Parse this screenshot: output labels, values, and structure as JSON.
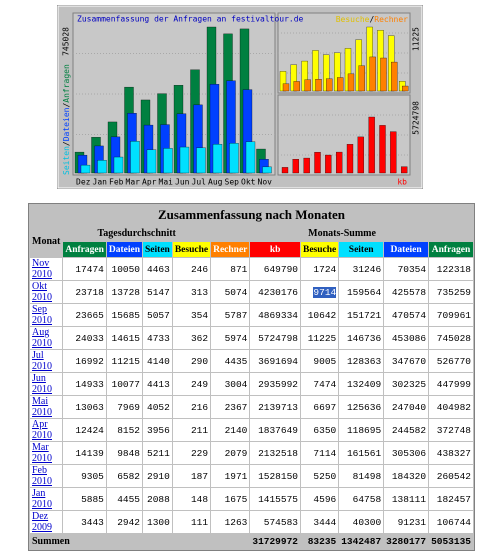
{
  "graph": {
    "title": "Zusammenfassung der Anfragen an festivaltour.de",
    "side_label": [
      "Seiten",
      "Dateien",
      "Anfragen"
    ],
    "legend": [
      "Besuche",
      "Rechner"
    ],
    "separator": "/",
    "scale_labels": {
      "main": 745028,
      "visits": 11225,
      "kb": 5724798
    },
    "kb_label": "kb",
    "months": [
      "Dez",
      "Jan",
      "Feb",
      "Mar",
      "Apr",
      "Mai",
      "Jun",
      "Jul",
      "Aug",
      "Sep",
      "Okt",
      "Nov"
    ]
  },
  "table": {
    "title": "Zusammenfassung nach Monaten",
    "col_month": "Monat",
    "group_daily": "Tagesdurchschnitt",
    "group_monthly": "Monats-Summe",
    "columns": [
      "Anfragen",
      "Dateien",
      "Seiten",
      "Besuche",
      "Rechner",
      "kb",
      "Besuche",
      "Seiten",
      "Dateien",
      "Anfragen"
    ],
    "rows": [
      {
        "month": "Nov 2010",
        "cells": [
          17474,
          10050,
          4463,
          246,
          871,
          649790,
          1724,
          31246,
          70354,
          122318
        ]
      },
      {
        "month": "Okt 2010",
        "cells": [
          23718,
          13728,
          5147,
          313,
          5074,
          4230176,
          9714,
          159564,
          425578,
          735259
        ]
      },
      {
        "month": "Sep 2010",
        "cells": [
          23665,
          15685,
          5057,
          354,
          5787,
          4869334,
          10642,
          151721,
          470574,
          709961
        ]
      },
      {
        "month": "Aug 2010",
        "cells": [
          24033,
          14615,
          4733,
          362,
          5974,
          5724798,
          11225,
          146736,
          453086,
          745028
        ]
      },
      {
        "month": "Jul 2010",
        "cells": [
          16992,
          11215,
          4140,
          290,
          4435,
          3691694,
          9005,
          128363,
          347670,
          526770
        ]
      },
      {
        "month": "Jun 2010",
        "cells": [
          14933,
          10077,
          4413,
          249,
          3004,
          2935992,
          7474,
          132409,
          302325,
          447999
        ]
      },
      {
        "month": "Mai 2010",
        "cells": [
          13063,
          7969,
          4052,
          216,
          2367,
          2139713,
          6697,
          125636,
          247040,
          404982
        ]
      },
      {
        "month": "Apr 2010",
        "cells": [
          12424,
          8152,
          3956,
          211,
          2140,
          1837649,
          6350,
          118695,
          244582,
          372748
        ]
      },
      {
        "month": "Mar 2010",
        "cells": [
          14139,
          9848,
          5211,
          229,
          2079,
          2132518,
          7114,
          161561,
          305306,
          438327
        ]
      },
      {
        "month": "Feb 2010",
        "cells": [
          9305,
          6582,
          2910,
          187,
          1971,
          1528150,
          5250,
          81498,
          184320,
          260542
        ]
      },
      {
        "month": "Jan 2010",
        "cells": [
          5885,
          4455,
          2088,
          148,
          1675,
          1415575,
          4596,
          64758,
          138111,
          182457
        ]
      },
      {
        "month": "Dez 2009",
        "cells": [
          3443,
          2942,
          1300,
          111,
          1263,
          574583,
          3444,
          40300,
          91231,
          106744
        ]
      }
    ],
    "totals": {
      "label": "Summen",
      "values": [
        31729972,
        83235,
        1342487,
        3280177,
        5053135
      ]
    }
  }
}
